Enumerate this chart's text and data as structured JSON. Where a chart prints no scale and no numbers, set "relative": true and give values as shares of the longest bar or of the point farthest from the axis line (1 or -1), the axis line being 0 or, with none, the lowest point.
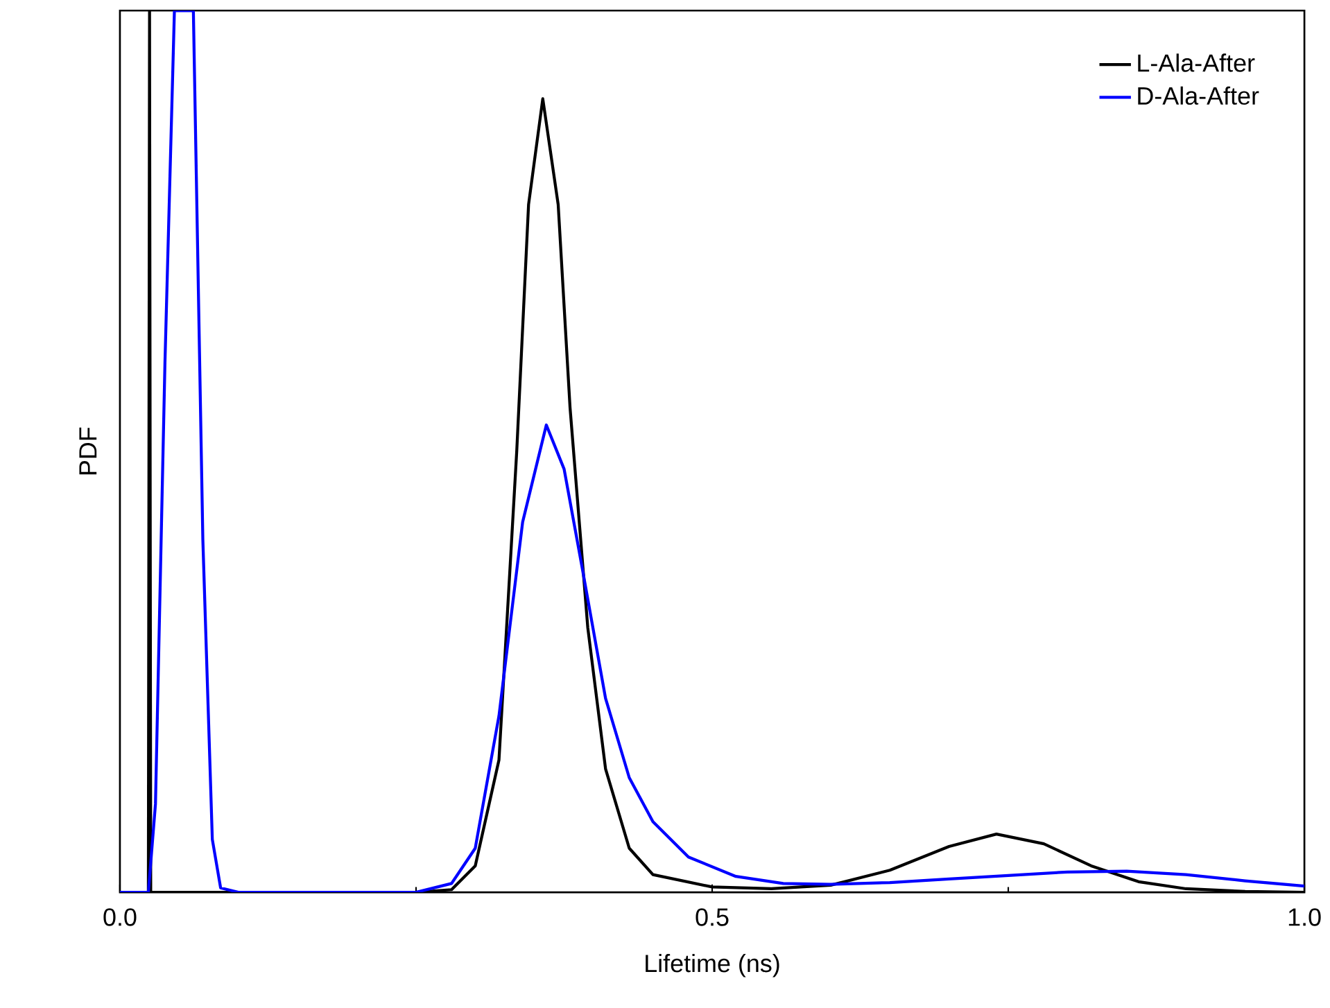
{
  "chart_data": {
    "type": "line",
    "xlabel": "Lifetime (ns)",
    "ylabel": "PDF",
    "relative": true,
    "legend": "top right",
    "xlim": [
      0,
      1
    ],
    "xticks": [
      {
        "value": 0,
        "label": "0.0"
      },
      {
        "value": 0.5,
        "label": "0.5"
      },
      {
        "value": 1,
        "label": "1.0"
      }
    ],
    "series": [
      {
        "name": "L-Ala-After",
        "color": "#000000",
        "x": [
          0,
          0.024,
          0.025,
          0.026,
          0.03,
          0.25,
          0.28,
          0.3,
          0.32,
          0.335,
          0.345,
          0.357,
          0.37,
          0.38,
          0.395,
          0.41,
          0.43,
          0.45,
          0.5,
          0.55,
          0.6,
          0.65,
          0.7,
          0.74,
          0.78,
          0.82,
          0.86,
          0.9,
          0.95,
          1
        ],
        "values": [
          0,
          0,
          1,
          0,
          0,
          0,
          0.003,
          0.03,
          0.15,
          0.5,
          0.78,
          0.9,
          0.78,
          0.55,
          0.3,
          0.14,
          0.05,
          0.02,
          0.006,
          0.004,
          0.008,
          0.025,
          0.052,
          0.066,
          0.055,
          0.03,
          0.012,
          0.004,
          0.001,
          0
        ]
      },
      {
        "name": "D-Ala-After",
        "color": "#0000ff",
        "x": [
          0,
          0.024,
          0.03,
          0.038,
          0.046,
          0.062,
          0.07,
          0.078,
          0.085,
          0.1,
          0.25,
          0.28,
          0.3,
          0.32,
          0.34,
          0.36,
          0.375,
          0.39,
          0.41,
          0.43,
          0.45,
          0.48,
          0.52,
          0.56,
          0.6,
          0.65,
          0.7,
          0.75,
          0.8,
          0.85,
          0.9,
          0.95,
          1
        ],
        "values": [
          0,
          0,
          0.1,
          0.6,
          1,
          1,
          0.4,
          0.06,
          0.005,
          0,
          0,
          0.01,
          0.05,
          0.2,
          0.42,
          0.53,
          0.48,
          0.37,
          0.22,
          0.13,
          0.08,
          0.04,
          0.018,
          0.01,
          0.009,
          0.011,
          0.015,
          0.019,
          0.023,
          0.024,
          0.02,
          0.013,
          0.007
        ]
      }
    ]
  }
}
